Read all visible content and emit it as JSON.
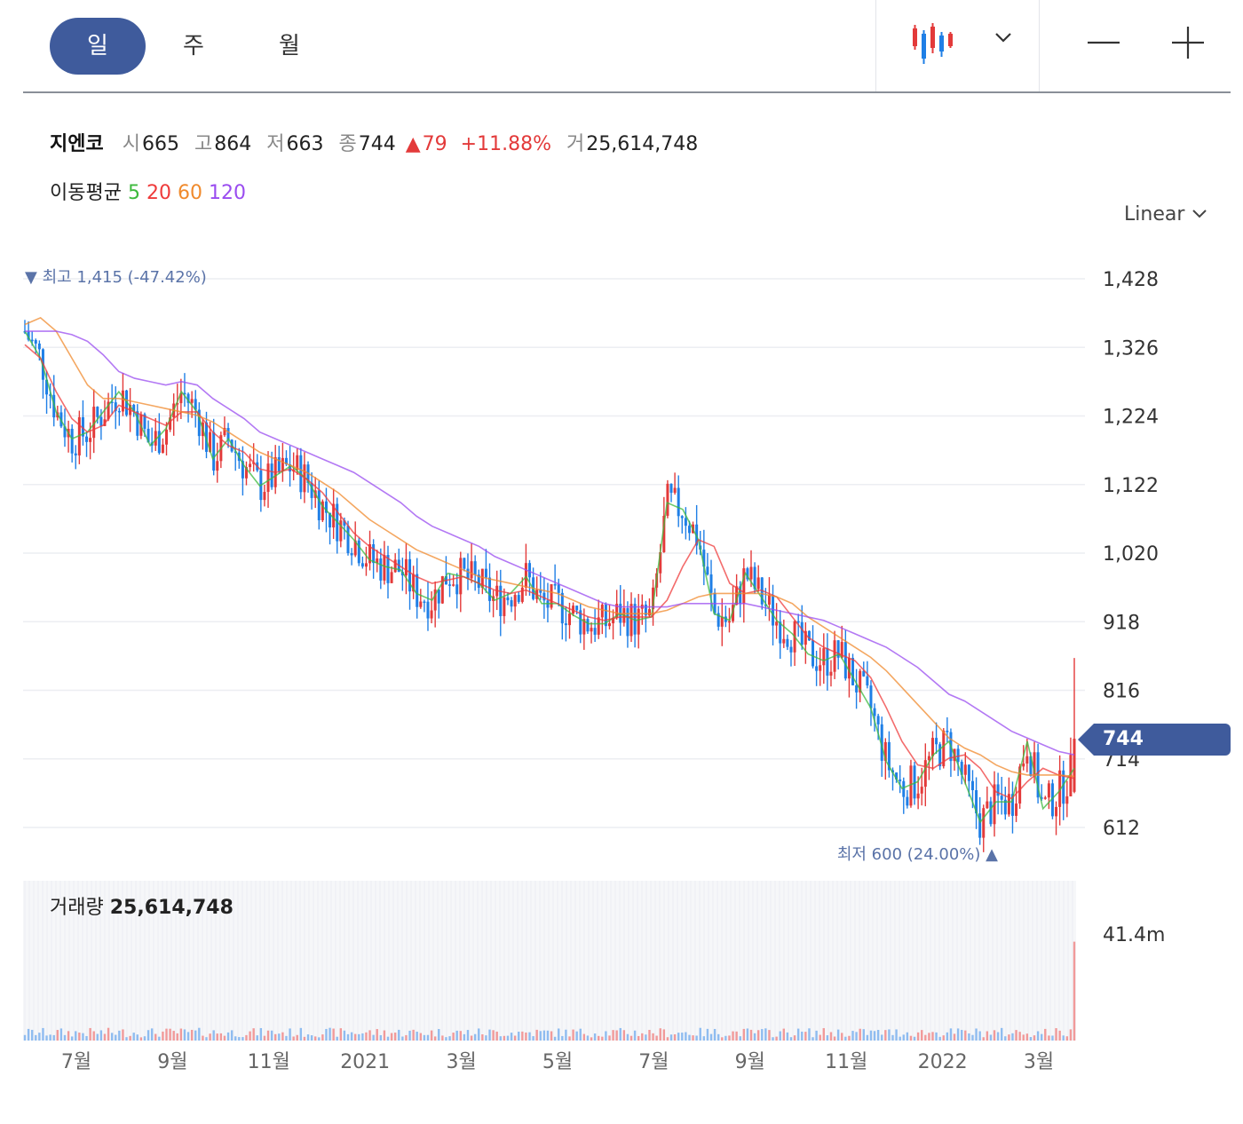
{
  "toolbar": {
    "tabs": [
      {
        "label": "일",
        "active": true
      },
      {
        "label": "주",
        "active": false
      },
      {
        "label": "월",
        "active": false
      }
    ],
    "chart_type_icon": "candlestick-icon",
    "dropdown_icon": "chevron-down-icon",
    "zoom_out_icon": "minus-icon",
    "zoom_in_icon": "plus-icon"
  },
  "quote": {
    "name": "지엔코",
    "open_label": "시",
    "open": "665",
    "high_label": "고",
    "high": "864",
    "low_label": "저",
    "low": "663",
    "close_label": "종",
    "close": "744",
    "change": "79",
    "change_pct": "+11.88%",
    "volume_label": "거",
    "volume": "25,614,748"
  },
  "moving_average": {
    "label": "이동평균",
    "periods": [
      {
        "value": "5",
        "color": "#3cb93c"
      },
      {
        "value": "20",
        "color": "#ef3b3b"
      },
      {
        "value": "60",
        "color": "#f08a2c"
      },
      {
        "value": "120",
        "color": "#9a4cf0"
      }
    ]
  },
  "scale_toggle": "Linear",
  "price_badge": "744",
  "volume_panel": {
    "label": "거래량",
    "value": "25,614,748",
    "axis_max_label": "41.4m"
  },
  "colors": {
    "up": "#e33a3a",
    "down": "#1f7fe6",
    "accent": "#3f5b9c"
  },
  "chart_data": {
    "type": "candlestick",
    "y_ticks": [
      "1,428",
      "1,326",
      "1,224",
      "1,122",
      "1,020",
      "918",
      "816",
      "714",
      "612"
    ],
    "x_ticks": [
      "7월",
      "9월",
      "11월",
      "2021",
      "3월",
      "5월",
      "7월",
      "9월",
      "11월",
      "2022",
      "3월"
    ],
    "ylim": [
      612,
      1428
    ],
    "high_marker": {
      "label": "최고",
      "value": "1,415 (-47.42%)"
    },
    "low_marker": {
      "label": "최저",
      "value": "600 (24.00%)"
    },
    "last": {
      "open": 665,
      "high": 864,
      "low": 663,
      "close": 744,
      "volume": 25614748
    },
    "volume_axis_max": 41400000,
    "series": [
      {
        "name": "5",
        "values": [
          1350,
          1310,
          1230,
          1190,
          1200,
          1230,
          1260,
          1230,
          1180,
          1205,
          1260,
          1230,
          1160,
          1190,
          1150,
          1120,
          1135,
          1150,
          1130,
          1090,
          1065,
          1040,
          1010,
          1000,
          995,
          960,
          950,
          990,
          985,
          975,
          950,
          960,
          985,
          945,
          945,
          928,
          915,
          915,
          930,
          920,
          925,
          1095,
          1085,
          1040,
          930,
          920,
          990,
          955,
          920,
          900,
          870,
          860,
          870,
          830,
          790,
          710,
          670,
          680,
          720,
          740,
          680,
          620,
          650,
          650,
          740,
          640,
          665,
          700
        ]
      },
      {
        "name": "20",
        "values": [
          1330,
          1310,
          1260,
          1220,
          1200,
          1210,
          1240,
          1230,
          1220,
          1210,
          1230,
          1230,
          1200,
          1180,
          1170,
          1145,
          1140,
          1145,
          1130,
          1110,
          1080,
          1050,
          1030,
          1015,
          1000,
          985,
          975,
          980,
          985,
          975,
          965,
          960,
          965,
          955,
          945,
          935,
          925,
          920,
          925,
          925,
          925,
          950,
          1000,
          1040,
          1030,
          975,
          960,
          965,
          955,
          925,
          895,
          880,
          870,
          860,
          835,
          790,
          740,
          705,
          700,
          715,
          720,
          700,
          665,
          655,
          680,
          700,
          690,
          685
        ]
      },
      {
        "name": "60",
        "values": [
          1360,
          1370,
          1350,
          1310,
          1270,
          1250,
          1250,
          1245,
          1240,
          1235,
          1230,
          1225,
          1215,
          1200,
          1185,
          1170,
          1160,
          1150,
          1140,
          1125,
          1110,
          1090,
          1070,
          1055,
          1040,
          1025,
          1015,
          1005,
          995,
          985,
          980,
          975,
          970,
          965,
          960,
          950,
          940,
          935,
          930,
          930,
          930,
          935,
          945,
          955,
          960,
          960,
          960,
          960,
          955,
          945,
          925,
          910,
          895,
          880,
          865,
          845,
          820,
          795,
          770,
          745,
          730,
          720,
          705,
          695,
          690,
          690,
          690,
          688
        ]
      },
      {
        "name": "120",
        "values": [
          1350,
          1350,
          1350,
          1345,
          1335,
          1315,
          1290,
          1280,
          1275,
          1270,
          1275,
          1270,
          1250,
          1235,
          1220,
          1200,
          1190,
          1180,
          1170,
          1160,
          1150,
          1140,
          1125,
          1110,
          1095,
          1075,
          1060,
          1050,
          1040,
          1030,
          1015,
          1005,
          995,
          985,
          975,
          965,
          955,
          945,
          940,
          940,
          940,
          940,
          945,
          945,
          945,
          945,
          945,
          940,
          935,
          930,
          925,
          920,
          910,
          900,
          890,
          880,
          865,
          850,
          830,
          810,
          800,
          785,
          770,
          755,
          745,
          735,
          725,
          720
        ]
      }
    ]
  }
}
